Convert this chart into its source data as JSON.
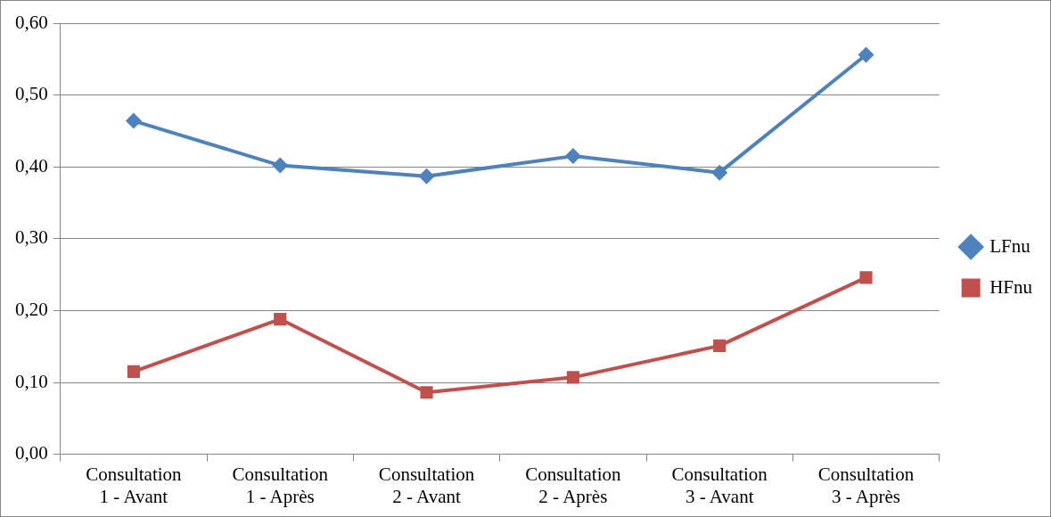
{
  "chart_data": {
    "type": "line",
    "categories": [
      "Consultation 1 - Avant",
      "Consultation 1 - Après",
      "Consultation 2 - Avant",
      "Consultation 2 - Après",
      "Consultation 3 - Avant",
      "Consultation 3 - Après"
    ],
    "series": [
      {
        "name": "LFnu",
        "color": "#4f81bd",
        "marker": "diamond",
        "values": [
          0.464,
          0.402,
          0.387,
          0.415,
          0.392,
          0.556
        ]
      },
      {
        "name": "HFnu",
        "color": "#c0504d",
        "marker": "square",
        "values": [
          0.115,
          0.188,
          0.086,
          0.107,
          0.151,
          0.246
        ]
      }
    ],
    "ylim": [
      0,
      0.6
    ],
    "yticks": [
      {
        "value": 0,
        "label": "0,00"
      },
      {
        "value": 0.1,
        "label": "0,10"
      },
      {
        "value": 0.2,
        "label": "0,20"
      },
      {
        "value": 0.3,
        "label": "0,30"
      },
      {
        "value": 0.4,
        "label": "0,40"
      },
      {
        "value": 0.5,
        "label": "0,50"
      },
      {
        "value": 0.6,
        "label": "0,60"
      }
    ],
    "grid": "y",
    "legend": "right",
    "line_style": "solid"
  }
}
